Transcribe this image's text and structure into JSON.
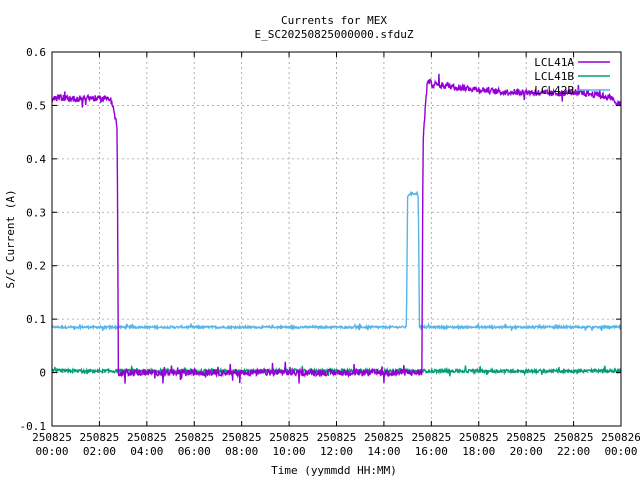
{
  "chart_data": {
    "type": "line",
    "title": "Currents for MEX",
    "subtitle": "E_SC20250825000000.sfduZ",
    "xlabel": "Time (yymmdd HH:MM)",
    "ylabel": "S/C Current (A)",
    "xlim_hours": [
      0,
      24
    ],
    "ylim": [
      -0.1,
      0.6
    ],
    "grid": true,
    "legend_position": "top-right",
    "x_ticks": [
      {
        "hours": 0,
        "date": "250825",
        "time": "00:00"
      },
      {
        "hours": 2,
        "date": "250825",
        "time": "02:00"
      },
      {
        "hours": 4,
        "date": "250825",
        "time": "04:00"
      },
      {
        "hours": 6,
        "date": "250825",
        "time": "06:00"
      },
      {
        "hours": 8,
        "date": "250825",
        "time": "08:00"
      },
      {
        "hours": 10,
        "date": "250825",
        "time": "10:00"
      },
      {
        "hours": 12,
        "date": "250825",
        "time": "12:00"
      },
      {
        "hours": 14,
        "date": "250825",
        "time": "14:00"
      },
      {
        "hours": 16,
        "date": "250825",
        "time": "16:00"
      },
      {
        "hours": 18,
        "date": "250825",
        "time": "18:00"
      },
      {
        "hours": 20,
        "date": "250825",
        "time": "20:00"
      },
      {
        "hours": 22,
        "date": "250825",
        "time": "22:00"
      },
      {
        "hours": 24,
        "date": "250826",
        "time": "00:00"
      }
    ],
    "y_ticks": [
      {
        "value": -0.1,
        "label": "-0.1"
      },
      {
        "value": 0,
        "label": "0"
      },
      {
        "value": 0.1,
        "label": "0.1"
      },
      {
        "value": 0.2,
        "label": "0.2"
      },
      {
        "value": 0.3,
        "label": "0.3"
      },
      {
        "value": 0.4,
        "label": "0.4"
      },
      {
        "value": 0.5,
        "label": "0.5"
      },
      {
        "value": 0.6,
        "label": "0.6"
      }
    ],
    "series": [
      {
        "name": "LCL41A",
        "color": "#9400d3",
        "noise": 0.006,
        "points": [
          [
            0.0,
            0.51
          ],
          [
            0.3,
            0.515
          ],
          [
            1.0,
            0.512
          ],
          [
            1.5,
            0.515
          ],
          [
            2.0,
            0.512
          ],
          [
            2.5,
            0.515
          ],
          [
            2.6,
            0.49
          ],
          [
            2.7,
            0.47
          ],
          [
            2.75,
            0.45
          ],
          [
            2.8,
            0.0
          ],
          [
            5.0,
            0.0
          ],
          [
            8.0,
            0.0
          ],
          [
            11.0,
            0.0
          ],
          [
            14.0,
            0.0
          ],
          [
            15.6,
            0.0
          ],
          [
            15.65,
            0.43
          ],
          [
            15.75,
            0.5
          ],
          [
            15.85,
            0.55
          ],
          [
            16.0,
            0.54
          ],
          [
            17.0,
            0.535
          ],
          [
            18.0,
            0.53
          ],
          [
            19.0,
            0.525
          ],
          [
            20.0,
            0.525
          ],
          [
            21.0,
            0.522
          ],
          [
            22.0,
            0.525
          ],
          [
            23.0,
            0.52
          ],
          [
            23.5,
            0.515
          ],
          [
            24.0,
            0.5
          ]
        ]
      },
      {
        "name": "LCL41B",
        "color": "#009e73",
        "noise": 0.003,
        "points": [
          [
            0.0,
            0.003
          ],
          [
            6.0,
            0.003
          ],
          [
            12.0,
            0.003
          ],
          [
            18.0,
            0.003
          ],
          [
            24.0,
            0.003
          ]
        ]
      },
      {
        "name": "LCL42B",
        "color": "#56b4e9",
        "noise": 0.002,
        "points": [
          [
            0.0,
            0.085
          ],
          [
            14.95,
            0.085
          ],
          [
            15.0,
            0.33
          ],
          [
            15.1,
            0.335
          ],
          [
            15.4,
            0.335
          ],
          [
            15.45,
            0.33
          ],
          [
            15.5,
            0.085
          ],
          [
            24.0,
            0.085
          ]
        ]
      }
    ]
  }
}
